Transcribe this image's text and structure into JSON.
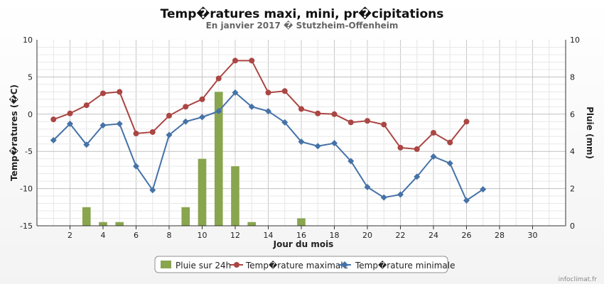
{
  "chart_data": {
    "type": "bar+line",
    "title": "Temp�ratures maxi, mini, pr�cipitations",
    "subtitle": "En janvier 2017 � Stutzheim-Offenheim",
    "xlabel": "Jour du mois",
    "ylabel_left": "Temp�ratures (�C)",
    "ylabel_right": "Pluie (mm)",
    "credit": "infoclimat.fr",
    "xlim": [
      0,
      32
    ],
    "x_ticks": [
      "2",
      "4",
      "6",
      "8",
      "10",
      "12",
      "14",
      "16",
      "18",
      "20",
      "22",
      "24",
      "26",
      "28",
      "30"
    ],
    "ylim_left": [
      -15,
      10
    ],
    "y_ticks_left": [
      "10",
      "5",
      "0",
      "-5",
      "-10",
      "-15"
    ],
    "ylim_right": [
      0,
      10
    ],
    "y_ticks_right": [
      "10",
      "8",
      "6",
      "4",
      "2",
      "0"
    ],
    "grid": true,
    "legend_position": "bottom-center",
    "colors": {
      "rain": "#89a54e",
      "max": "#aa4643",
      "min": "#4572a7"
    },
    "series": [
      {
        "name": "Pluie sur 24h",
        "type": "bar",
        "axis": "right",
        "x": [
          3,
          4,
          5,
          9,
          10,
          11,
          12,
          13,
          16
        ],
        "values": [
          1.0,
          0.2,
          0.2,
          1.0,
          3.6,
          7.2,
          3.2,
          0.2,
          0.4
        ]
      },
      {
        "name": "Temp�rature maximale",
        "type": "line",
        "axis": "left",
        "x": [
          1,
          2,
          3,
          4,
          5,
          6,
          7,
          8,
          9,
          10,
          11,
          12,
          13,
          14,
          15,
          16,
          17,
          18,
          19,
          20,
          21,
          22,
          23,
          24,
          25,
          26
        ],
        "values": [
          -0.7,
          0.1,
          1.2,
          2.8,
          3.0,
          -2.6,
          -2.4,
          -0.2,
          1.0,
          2.0,
          4.8,
          7.2,
          7.2,
          2.9,
          3.1,
          0.7,
          0.1,
          0.0,
          -1.1,
          -0.9,
          -1.4,
          -4.5,
          -4.7,
          -2.5,
          -3.8,
          -1.0
        ]
      },
      {
        "name": "Temp�rature minimale",
        "type": "line",
        "axis": "left",
        "x": [
          1,
          2,
          3,
          4,
          5,
          6,
          7,
          8,
          9,
          10,
          11,
          12,
          13,
          14,
          15,
          16,
          17,
          18,
          19,
          20,
          21,
          22,
          23,
          24,
          25,
          26,
          27
        ],
        "values": [
          -3.5,
          -1.3,
          -4.1,
          -1.5,
          -1.3,
          -7.0,
          -10.2,
          -2.8,
          -1.0,
          -0.4,
          0.4,
          2.9,
          1.0,
          0.4,
          -1.1,
          -3.7,
          -4.3,
          -3.9,
          -6.3,
          -9.8,
          -11.2,
          -10.8,
          -8.4,
          -5.7,
          -6.6,
          -11.6,
          -10.1
        ]
      }
    ]
  }
}
